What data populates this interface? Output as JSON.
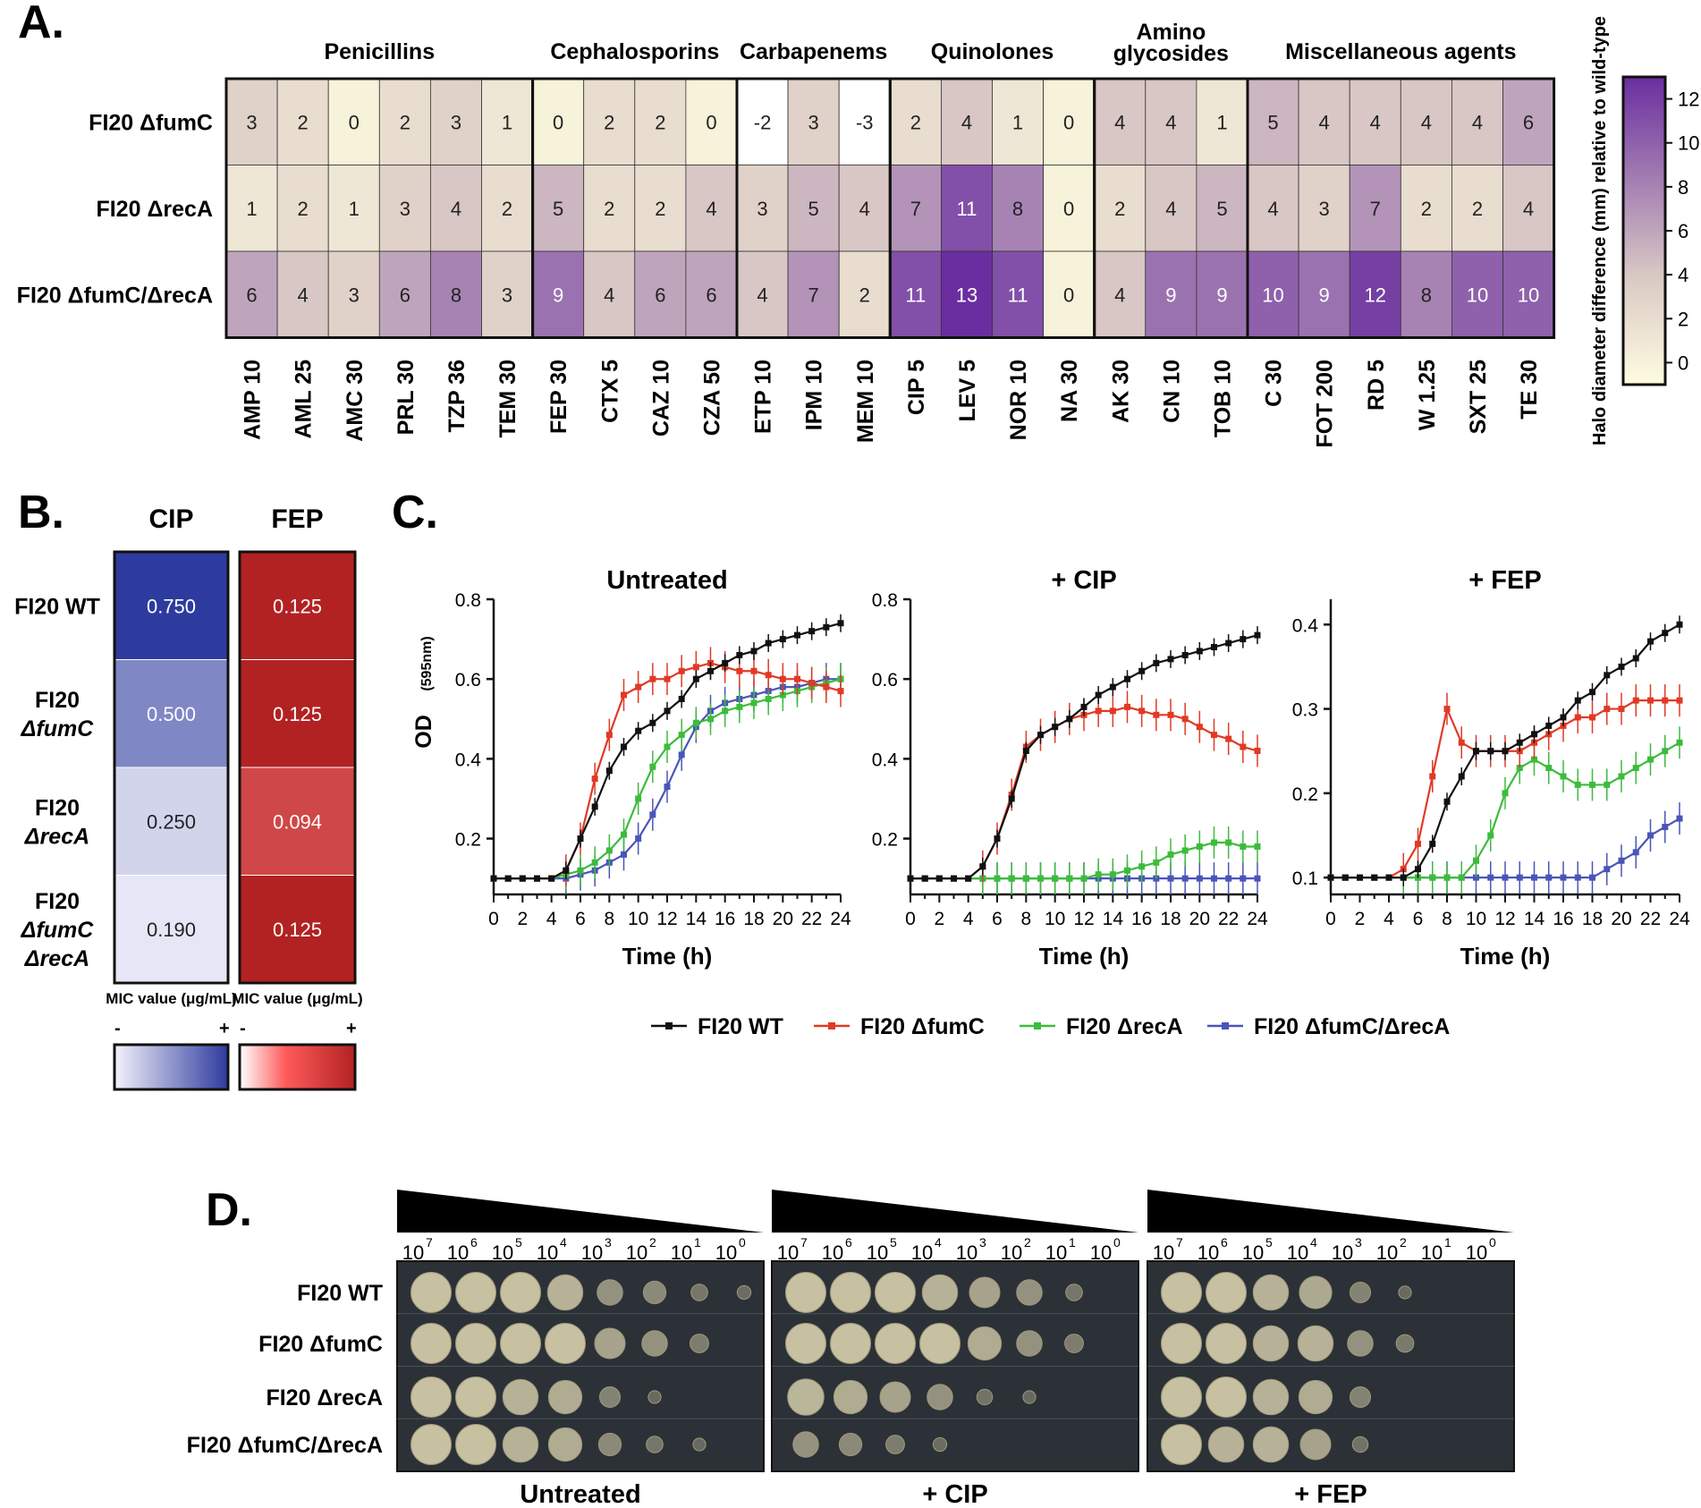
{
  "panel_labels": {
    "a": "A.",
    "b": "B.",
    "c": "C.",
    "d": "D."
  },
  "colors": {
    "heat_low": "#fffce0",
    "heat_mid": "#d9c9c4",
    "heat_high": "#6a2ea0",
    "mic_blue": "#2e3b9e",
    "mic_red": "#b22222",
    "wt": "#111111",
    "fumC": "#e03a26",
    "recA": "#3dbb3d",
    "double": "#4a55b8"
  },
  "chart_data": [
    {
      "id": "A",
      "type": "heatmap",
      "title": "",
      "strains": [
        "FI20 ΔfumC",
        "FI20 ΔrecA",
        "FI20 ΔfumC/ΔrecA"
      ],
      "antibiotics": [
        "AMP 10",
        "AML 25",
        "AMC 30",
        "PRL 30",
        "TZP 36",
        "TEM 30",
        "FEP 30",
        "CTX 5",
        "CAZ 10",
        "CZA 50",
        "ETP 10",
        "IPM 10",
        "MEM 10",
        "CIP 5",
        "LEV 5",
        "NOR 10",
        "NA 30",
        "AK 30",
        "CN 10",
        "TOB 10",
        "C 30",
        "FOT 200",
        "RD 5",
        "W 1.25",
        "SXT 25",
        "TE 30"
      ],
      "groups": [
        {
          "label": "Penicillins",
          "label2": "",
          "start": 0,
          "end": 5
        },
        {
          "label": "Cephalosporins",
          "label2": "",
          "start": 6,
          "end": 9
        },
        {
          "label": "Carbapenems",
          "label2": "",
          "start": 10,
          "end": 12
        },
        {
          "label": "Quinolones",
          "label2": "",
          "start": 13,
          "end": 16
        },
        {
          "label": "Amino",
          "label2": "glycosides",
          "start": 17,
          "end": 19
        },
        {
          "label": "Miscellaneous agents",
          "label2": "",
          "start": 20,
          "end": 25
        }
      ],
      "values": [
        [
          3,
          2,
          0,
          2,
          3,
          1,
          0,
          2,
          2,
          0,
          -2,
          3,
          -3,
          2,
          4,
          1,
          0,
          4,
          4,
          1,
          5,
          4,
          4,
          4,
          4,
          6
        ],
        [
          1,
          2,
          1,
          3,
          4,
          2,
          5,
          2,
          2,
          4,
          3,
          5,
          4,
          7,
          11,
          8,
          0,
          2,
          4,
          5,
          4,
          3,
          7,
          2,
          2,
          4
        ],
        [
          6,
          4,
          3,
          6,
          8,
          3,
          9,
          4,
          6,
          6,
          4,
          7,
          2,
          11,
          13,
          11,
          0,
          4,
          9,
          9,
          10,
          9,
          12,
          8,
          10,
          10
        ]
      ],
      "colorbar": {
        "label": "Halo diameter difference (mm) relative to wild-type",
        "min": -1,
        "max": 13,
        "ticks": [
          0,
          2,
          4,
          6,
          8,
          10,
          12
        ]
      }
    },
    {
      "id": "B",
      "type": "heatmap",
      "columns": [
        "CIP",
        "FEP"
      ],
      "strains": [
        "FI20 WT",
        "FI20 ΔfumC",
        "FI20 ΔrecA",
        "FI20 ΔfumC ΔrecA"
      ],
      "values": {
        "CIP": [
          0.75,
          0.5,
          0.25,
          0.19
        ],
        "FEP": [
          0.125,
          0.125,
          0.094,
          0.125
        ]
      },
      "value_labels": {
        "CIP": [
          "0.750",
          "0.500",
          "0.250",
          "0.190"
        ],
        "FEP": [
          "0.125",
          "0.125",
          "0.094",
          "0.125"
        ]
      },
      "legend_title": "MIC value (μg/mL)",
      "legend_minus": "-",
      "legend_plus": "+"
    },
    {
      "id": "C",
      "type": "line",
      "x": [
        0,
        1,
        2,
        3,
        4,
        5,
        6,
        7,
        8,
        9,
        10,
        11,
        12,
        13,
        14,
        15,
        16,
        17,
        18,
        19,
        20,
        21,
        22,
        23,
        24
      ],
      "xlabel": "Time (h)",
      "ylabel": "OD",
      "ylabel_sub": "(595nm)",
      "xticks": [
        0,
        2,
        4,
        6,
        8,
        10,
        12,
        14,
        16,
        18,
        20,
        22,
        24
      ],
      "legend": [
        {
          "key": "wt",
          "name": "FI20 WT"
        },
        {
          "key": "fumC",
          "name": "FI20 ΔfumC"
        },
        {
          "key": "recA",
          "name": "FI20 ΔrecA"
        },
        {
          "key": "double",
          "name": "FI20 ΔfumC/ΔrecA"
        }
      ],
      "panels": [
        {
          "title": "Untreated",
          "ylim": [
            0.06,
            0.8
          ],
          "yticks": [
            0.2,
            0.4,
            0.6,
            0.8
          ],
          "ytick_labels": [
            "0.2",
            "0.4",
            "0.6",
            "0.8"
          ],
          "series": {
            "wt": [
              0.1,
              0.1,
              0.1,
              0.1,
              0.1,
              0.12,
              0.2,
              0.28,
              0.37,
              0.43,
              0.47,
              0.49,
              0.52,
              0.55,
              0.6,
              0.62,
              0.64,
              0.66,
              0.67,
              0.69,
              0.7,
              0.71,
              0.72,
              0.73,
              0.74
            ],
            "fumC": [
              0.1,
              0.1,
              0.1,
              0.1,
              0.1,
              0.12,
              0.2,
              0.35,
              0.46,
              0.56,
              0.58,
              0.6,
              0.6,
              0.62,
              0.63,
              0.64,
              0.63,
              0.62,
              0.62,
              0.61,
              0.6,
              0.6,
              0.59,
              0.58,
              0.57
            ],
            "recA": [
              0.1,
              0.1,
              0.1,
              0.1,
              0.1,
              0.11,
              0.12,
              0.14,
              0.17,
              0.21,
              0.3,
              0.38,
              0.43,
              0.46,
              0.49,
              0.5,
              0.52,
              0.53,
              0.54,
              0.55,
              0.56,
              0.57,
              0.58,
              0.59,
              0.6
            ],
            "double": [
              0.1,
              0.1,
              0.1,
              0.1,
              0.1,
              0.1,
              0.11,
              0.12,
              0.14,
              0.16,
              0.2,
              0.26,
              0.33,
              0.41,
              0.48,
              0.52,
              0.54,
              0.55,
              0.56,
              0.57,
              0.58,
              0.58,
              0.59,
              0.6,
              0.6
            ]
          }
        },
        {
          "title": "+ CIP",
          "ylim": [
            0.06,
            0.8
          ],
          "yticks": [
            0.2,
            0.4,
            0.6,
            0.8
          ],
          "ytick_labels": [
            "0.2",
            "0.4",
            "0.6",
            "0.8"
          ],
          "series": {
            "wt": [
              0.1,
              0.1,
              0.1,
              0.1,
              0.1,
              0.13,
              0.2,
              0.3,
              0.42,
              0.46,
              0.48,
              0.5,
              0.53,
              0.56,
              0.58,
              0.6,
              0.62,
              0.64,
              0.65,
              0.66,
              0.67,
              0.68,
              0.69,
              0.7,
              0.71
            ],
            "fumC": [
              0.1,
              0.1,
              0.1,
              0.1,
              0.1,
              0.13,
              0.2,
              0.31,
              0.43,
              0.46,
              0.48,
              0.5,
              0.51,
              0.52,
              0.52,
              0.53,
              0.52,
              0.51,
              0.51,
              0.5,
              0.48,
              0.46,
              0.45,
              0.43,
              0.42
            ],
            "recA": [
              0.1,
              0.1,
              0.1,
              0.1,
              0.1,
              0.1,
              0.1,
              0.1,
              0.1,
              0.1,
              0.1,
              0.1,
              0.1,
              0.11,
              0.11,
              0.12,
              0.13,
              0.14,
              0.16,
              0.17,
              0.18,
              0.19,
              0.19,
              0.18,
              0.18
            ],
            "double": [
              0.1,
              0.1,
              0.1,
              0.1,
              0.1,
              0.1,
              0.1,
              0.1,
              0.1,
              0.1,
              0.1,
              0.1,
              0.1,
              0.1,
              0.1,
              0.1,
              0.1,
              0.1,
              0.1,
              0.1,
              0.1,
              0.1,
              0.1,
              0.1,
              0.1
            ]
          }
        },
        {
          "title": "+ FEP",
          "ylim": [
            0.08,
            0.43
          ],
          "yticks": [
            0.1,
            0.2,
            0.3,
            0.4
          ],
          "ytick_labels": [
            "0.1",
            "0.2",
            "0.3",
            "0.4"
          ],
          "series": {
            "wt": [
              0.1,
              0.1,
              0.1,
              0.1,
              0.1,
              0.1,
              0.11,
              0.14,
              0.19,
              0.22,
              0.25,
              0.25,
              0.25,
              0.26,
              0.27,
              0.28,
              0.29,
              0.31,
              0.32,
              0.34,
              0.35,
              0.36,
              0.38,
              0.39,
              0.4
            ],
            "fumC": [
              0.1,
              0.1,
              0.1,
              0.1,
              0.1,
              0.11,
              0.14,
              0.22,
              0.3,
              0.26,
              0.25,
              0.25,
              0.25,
              0.25,
              0.26,
              0.27,
              0.28,
              0.29,
              0.29,
              0.3,
              0.3,
              0.31,
              0.31,
              0.31,
              0.31
            ],
            "recA": [
              0.1,
              0.1,
              0.1,
              0.1,
              0.1,
              0.1,
              0.1,
              0.1,
              0.1,
              0.1,
              0.12,
              0.15,
              0.2,
              0.23,
              0.24,
              0.23,
              0.22,
              0.21,
              0.21,
              0.21,
              0.22,
              0.23,
              0.24,
              0.25,
              0.26
            ],
            "double": [
              0.1,
              0.1,
              0.1,
              0.1,
              0.1,
              0.1,
              0.1,
              0.1,
              0.1,
              0.1,
              0.1,
              0.1,
              0.1,
              0.1,
              0.1,
              0.1,
              0.1,
              0.1,
              0.1,
              0.11,
              0.12,
              0.13,
              0.15,
              0.16,
              0.17
            ]
          }
        }
      ]
    },
    {
      "id": "D",
      "type": "table",
      "dilutions": [
        "10",
        "10",
        "10",
        "10",
        "10",
        "10",
        "10",
        "10"
      ],
      "dilution_exponents": [
        "7",
        "6",
        "5",
        "4",
        "3",
        "2",
        "1",
        "0"
      ],
      "strains": [
        "FI20 WT",
        "FI20 ΔfumC",
        "FI20 ΔrecA",
        "FI20 ΔfumC/ΔrecA"
      ],
      "conditions": [
        "Untreated",
        "+ CIP",
        "+ FEP"
      ],
      "growth_levels_note": "spots visible per row/condition",
      "growth": [
        [
          [
            3,
            3,
            3,
            2.5,
            1.5,
            1.2,
            0.6,
            0.3
          ],
          [
            3,
            3,
            3,
            2.5,
            2,
            1.5,
            0.6,
            0
          ],
          [
            3,
            3,
            2.5,
            2.2,
            1,
            0.2,
            0,
            0
          ]
        ],
        [
          [
            3,
            3,
            3,
            3,
            2,
            1.5,
            0.8,
            0
          ],
          [
            3,
            3,
            3,
            3,
            2.3,
            1.5,
            0.8,
            0
          ],
          [
            3,
            3,
            2.5,
            2.5,
            1.5,
            0.7,
            0,
            0
          ]
        ],
        [
          [
            3,
            3,
            2.5,
            2.3,
            1,
            0.2,
            0,
            0
          ],
          [
            2.6,
            2.3,
            2,
            1.5,
            0.5,
            0.2,
            0,
            0
          ],
          [
            3,
            3,
            2.5,
            2.3,
            1,
            0,
            0,
            0
          ]
        ],
        [
          [
            3,
            3,
            2.5,
            2.3,
            1.2,
            0.6,
            0.2,
            0
          ],
          [
            1.5,
            1.2,
            0.8,
            0.3,
            0,
            0,
            0,
            0
          ],
          [
            3,
            2.5,
            2.5,
            2,
            0.5,
            0,
            0,
            0
          ]
        ]
      ]
    }
  ]
}
